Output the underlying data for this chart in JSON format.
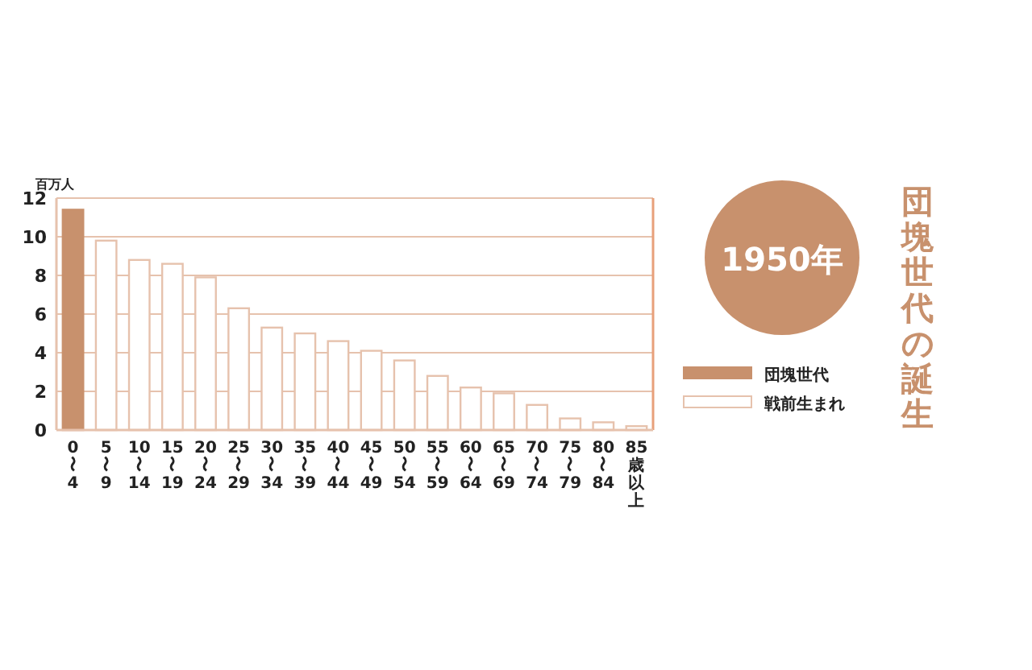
{
  "chart_data": {
    "type": "bar",
    "title": "団塊世代の誕生",
    "ylabel": "百万人",
    "annotations": [
      "1950年"
    ],
    "categories": [
      "0〜4",
      "5〜9",
      "10〜14",
      "15〜19",
      "20〜24",
      "25〜29",
      "30〜34",
      "35〜39",
      "40〜44",
      "45〜49",
      "50〜54",
      "55〜59",
      "60〜64",
      "65〜69",
      "70〜74",
      "75〜79",
      "80〜84",
      "85歳以上"
    ],
    "series": [
      {
        "name": "団塊世代",
        "color": "#c8916d",
        "values": [
          11.4,
          null,
          null,
          null,
          null,
          null,
          null,
          null,
          null,
          null,
          null,
          null,
          null,
          null,
          null,
          null,
          null,
          null
        ]
      },
      {
        "name": "戦前生まれ",
        "color": "#ffffff",
        "values": [
          null,
          9.8,
          8.8,
          8.6,
          7.9,
          6.3,
          5.3,
          5.0,
          4.6,
          4.1,
          3.6,
          2.8,
          2.2,
          1.9,
          1.3,
          0.6,
          0.4,
          0.2
        ]
      }
    ],
    "stacked": true,
    "ylim": [
      0,
      12
    ],
    "yticks": [
      0,
      2,
      4,
      6,
      8,
      10,
      12
    ],
    "grid": "y",
    "legend": "right"
  }
}
